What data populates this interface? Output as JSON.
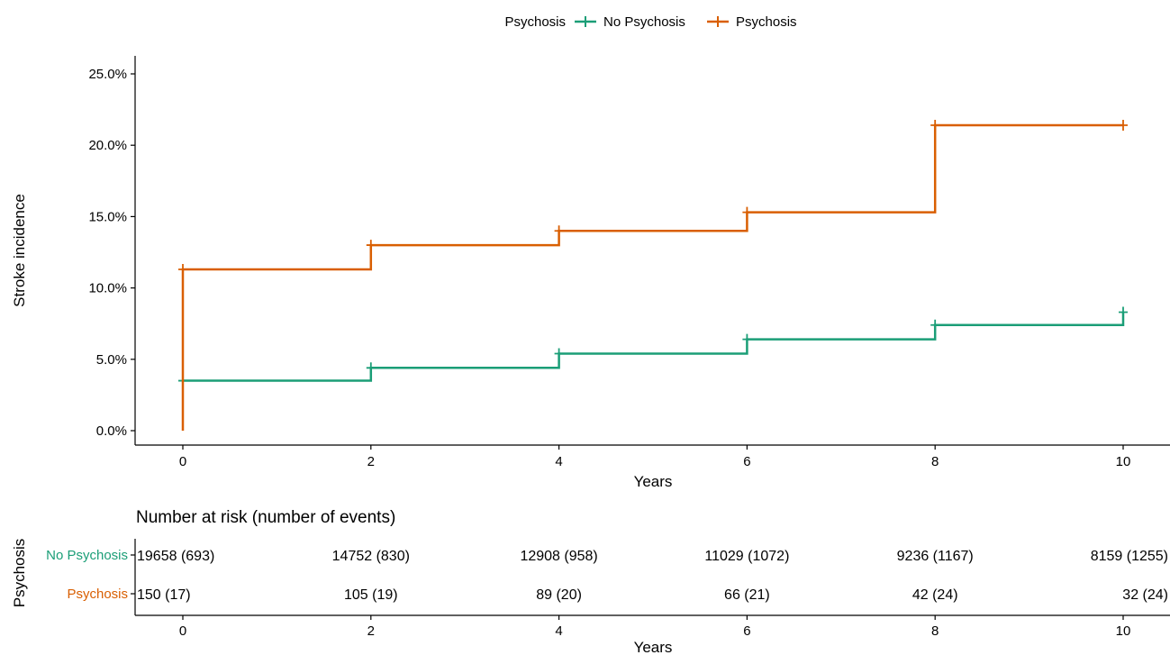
{
  "chart_data": {
    "type": "line",
    "step": true,
    "legend": {
      "title": "Psychosis",
      "entries": [
        "No Psychosis",
        "Psychosis"
      ],
      "position": "top"
    },
    "xlabel": "Years",
    "ylabel": "Stroke incidence",
    "xlim": [
      0,
      10
    ],
    "ylim": [
      0,
      0.25
    ],
    "x_ticks": [
      0,
      2,
      4,
      6,
      8,
      10
    ],
    "y_ticks": [
      0,
      0.05,
      0.1,
      0.15,
      0.2,
      0.25
    ],
    "y_tick_labels": [
      "0.0%",
      "5.0%",
      "10.0%",
      "15.0%",
      "20.0%",
      "25.0%"
    ],
    "grid": false,
    "series": [
      {
        "name": "No Psychosis",
        "color": "#1b9e77",
        "x": [
          0,
          2,
          4,
          6,
          8,
          10
        ],
        "y": [
          0.035,
          0.044,
          0.054,
          0.064,
          0.074,
          0.083
        ]
      },
      {
        "name": "Psychosis",
        "color": "#d95f02",
        "x": [
          0,
          0,
          2,
          4,
          6,
          8,
          10
        ],
        "y": [
          0,
          0.113,
          0.13,
          0.14,
          0.153,
          0.214,
          0.214
        ]
      }
    ],
    "risk_table": {
      "title": "Number at risk (number of events)",
      "ylabel": "Psychosis",
      "xlabel": "Years",
      "x_ticks": [
        0,
        2,
        4,
        6,
        8,
        10
      ],
      "rows": [
        {
          "label": "No Psychosis",
          "color": "#1b9e77",
          "values": [
            "19658 (693)",
            "14752 (830)",
            "12908 (958)",
            "11029 (1072)",
            "9236 (1167)",
            "8159 (1255)"
          ]
        },
        {
          "label": "Psychosis",
          "color": "#d95f02",
          "values": [
            "150 (17)",
            "105 (19)",
            "89 (20)",
            "66 (21)",
            "42 (24)",
            "32 (24)"
          ]
        }
      ]
    }
  }
}
